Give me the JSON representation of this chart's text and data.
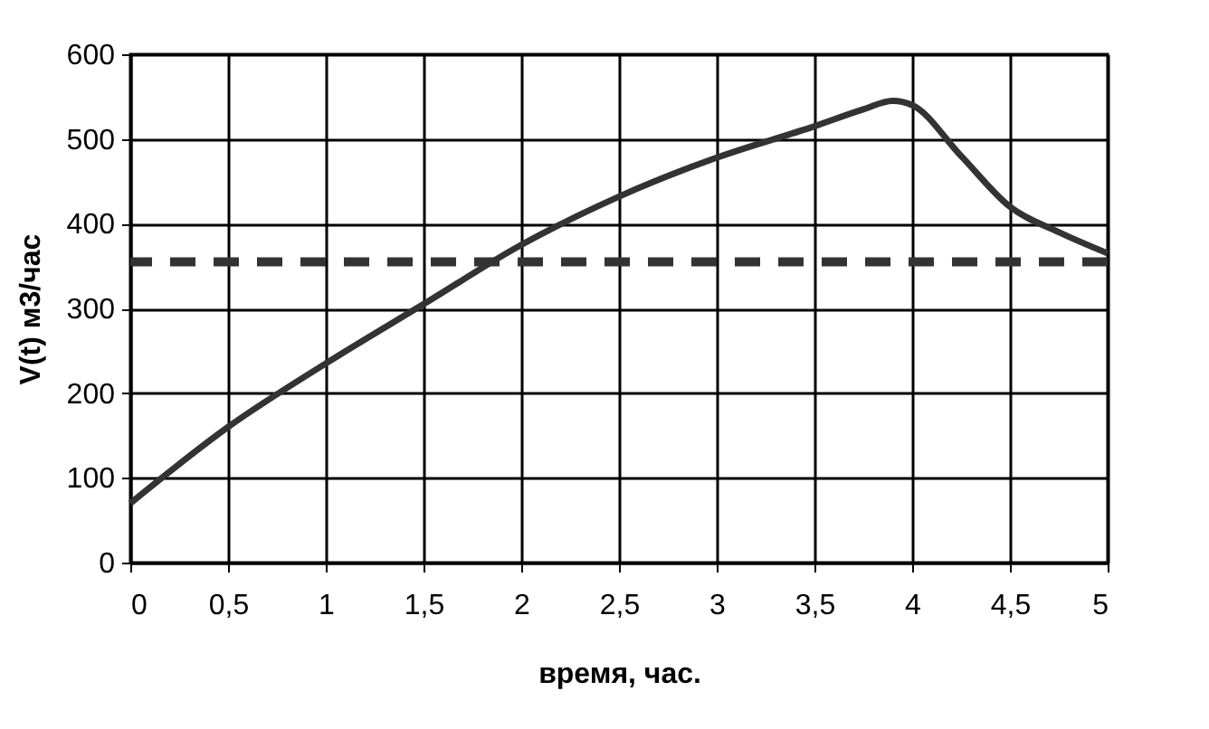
{
  "chart_data": {
    "type": "line",
    "xlabel": "время, час.",
    "ylabel": "V(t)   м3/час",
    "x": [
      0,
      0.5,
      1,
      1.5,
      2,
      2.5,
      3,
      3.5,
      3.75,
      3.9,
      4,
      4.25,
      4.5,
      4.75,
      5
    ],
    "series": [
      {
        "color": "#333333",
        "values": [
          70,
          160,
          235,
          305,
          375,
          432,
          478,
          515,
          535,
          545,
          540,
          480,
          420,
          390,
          365
        ]
      }
    ],
    "xlim": [
      0,
      5
    ],
    "ylim": [
      0,
      600
    ],
    "xticks": [
      0,
      {
        "value": 0.5,
        "label": "0,5"
      },
      1,
      {
        "value": 1.5,
        "label": "1,5"
      },
      2,
      {
        "value": 2.5,
        "label": "2,5"
      },
      3,
      {
        "value": 3.5,
        "label": "3,5"
      },
      4,
      {
        "value": 4.5,
        "label": "4,5"
      },
      5
    ],
    "yticks": [
      0,
      100,
      200,
      300,
      400,
      500,
      600
    ],
    "grid": true,
    "marker": "none",
    "line_style": "solid",
    "ref_lines": [
      {
        "axis": "y",
        "value": 355,
        "color": "#333333",
        "line_style": "dashed"
      }
    ]
  }
}
